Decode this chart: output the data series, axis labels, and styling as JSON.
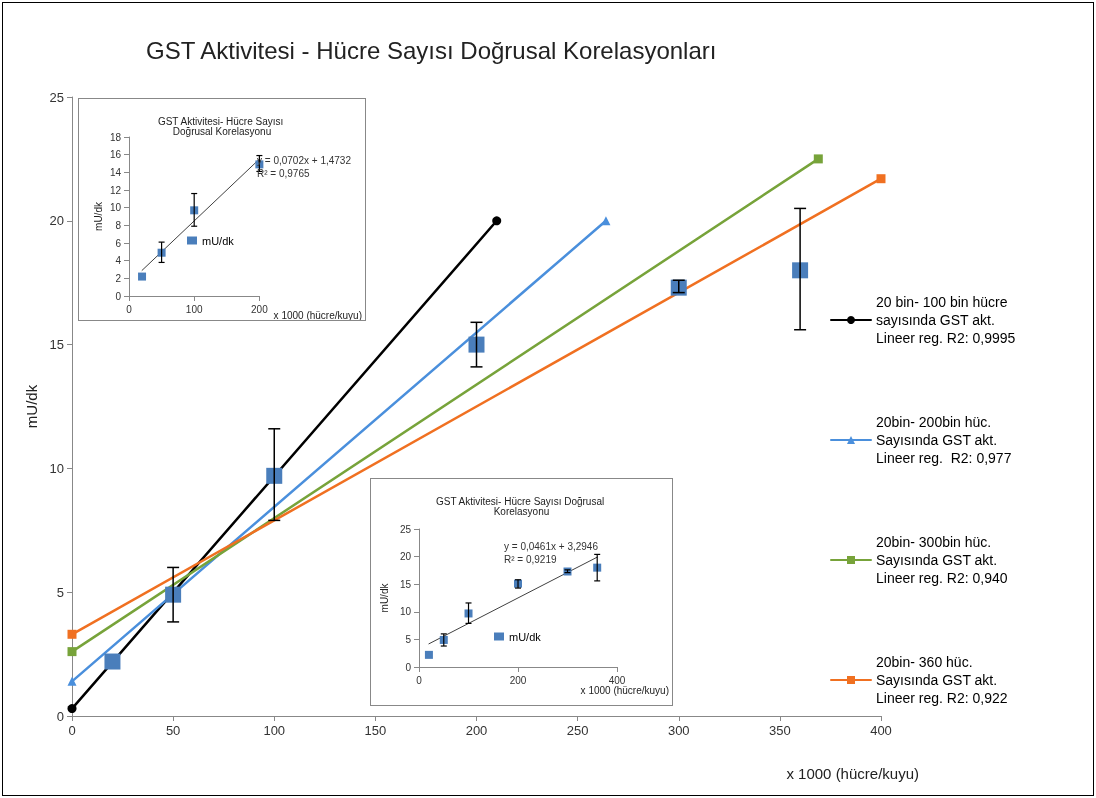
{
  "chart_data": [
    {
      "type": "line",
      "title": "GST Aktivitesi - Hücre Sayısı Doğrusal Korelasyonları",
      "xlabel": "x 1000 (hücre/kuyu)",
      "ylabel": "mU/dk",
      "xlim": [
        0,
        400
      ],
      "xticks": [
        0,
        50,
        100,
        150,
        200,
        250,
        300,
        350,
        400
      ],
      "ylim": [
        0,
        25
      ],
      "yticks": [
        0,
        5,
        10,
        15,
        20,
        25
      ],
      "legend": "right",
      "series": [
        {
          "name": "20 bin- 100 bin hücre sayısında GST akt. Lineer reg. R2: 0,9995",
          "color": "#000000",
          "marker": "circle",
          "x": [
            0,
            210
          ],
          "values": [
            0.3,
            20
          ]
        },
        {
          "name": "20bin- 200bin hüc. Sayısında GST akt. Lineer reg.  R2: 0,977",
          "color": "#4a8fdc",
          "marker": "triangle",
          "x": [
            0,
            264
          ],
          "values": [
            1.4,
            20
          ]
        },
        {
          "name": "20bin- 300bin hüc. Sayısında GST akt. Lineer reg. R2: 0,940",
          "color": "#77a33a",
          "marker": "square",
          "x": [
            0,
            369
          ],
          "values": [
            2.6,
            22.5
          ]
        },
        {
          "name": "20bin- 360 hüc. Sayısında GST akt. Lineer reg. R2: 0,922",
          "color": "#f07021",
          "marker": "square",
          "x": [
            0,
            400
          ],
          "values": [
            3.3,
            21.7
          ]
        },
        {
          "type": "scatter",
          "color": "#4a7ebb",
          "marker": "square",
          "x": [
            20,
            50,
            100,
            200,
            300,
            360
          ],
          "values": [
            2.2,
            4.9,
            9.7,
            15.0,
            17.3,
            18.0
          ],
          "errors": [
            null,
            [
              3.8,
              6.0
            ],
            [
              7.9,
              11.6
            ],
            [
              14.1,
              15.9
            ],
            [
              17.1,
              17.6
            ],
            [
              15.6,
              20.5
            ]
          ]
        }
      ]
    },
    {
      "type": "scatter",
      "title": "GST Aktivitesi- Hücre Sayısı Doğrusal Korelasyonu",
      "xlabel": "x 1000 (hücre/kuyu)",
      "ylabel": "mU/dk",
      "xlim": [
        0,
        200
      ],
      "xticks": [
        0,
        100,
        200
      ],
      "ylim": [
        0,
        18
      ],
      "yticks": [
        0,
        2,
        4,
        6,
        8,
        10,
        12,
        14,
        16,
        18
      ],
      "legend": "right",
      "annotations": [
        "y = 0,0702x + 1,4732",
        "R² = 0,9765"
      ],
      "series": [
        {
          "type": "line",
          "color": "#404040",
          "marker": "none",
          "x": [
            20,
            200
          ],
          "values": [
            2.9,
            15.5
          ]
        },
        {
          "name": "mU/dk",
          "color": "#4a7ebb",
          "marker": "square",
          "x": [
            20,
            50,
            100,
            200
          ],
          "values": [
            2.2,
            4.9,
            9.7,
            14.9
          ],
          "errors": [
            null,
            [
              3.8,
              6.1
            ],
            [
              7.9,
              11.6
            ],
            [
              14.1,
              15.9
            ]
          ]
        }
      ]
    },
    {
      "type": "scatter",
      "title": "GST Aktivitesi- Hücre Sayısı Doğrusal Korelasyonu",
      "xlabel": "x 1000 (hücre/kuyu)",
      "ylabel": "mU/dk",
      "xlim": [
        0,
        400
      ],
      "xticks": [
        0,
        200,
        400
      ],
      "ylim": [
        0,
        25
      ],
      "yticks": [
        0,
        5,
        10,
        15,
        20,
        25
      ],
      "legend": "right",
      "annotations": [
        "y = 0,0461x + 3,2946",
        "R² = 0,9219"
      ],
      "series": [
        {
          "type": "line",
          "color": "#404040",
          "marker": "none",
          "x": [
            20,
            360
          ],
          "values": [
            4.2,
            19.9
          ]
        },
        {
          "name": "mU/dk",
          "color": "#4a7ebb",
          "marker": "square",
          "x": [
            20,
            50,
            100,
            200,
            300,
            360
          ],
          "values": [
            2.2,
            4.9,
            9.7,
            15.1,
            17.3,
            18.0
          ],
          "errors": [
            null,
            [
              3.8,
              6.0
            ],
            [
              7.9,
              11.6
            ],
            [
              14.3,
              15.8
            ],
            [
              17.1,
              17.6
            ],
            [
              15.6,
              20.4
            ]
          ]
        }
      ]
    }
  ]
}
